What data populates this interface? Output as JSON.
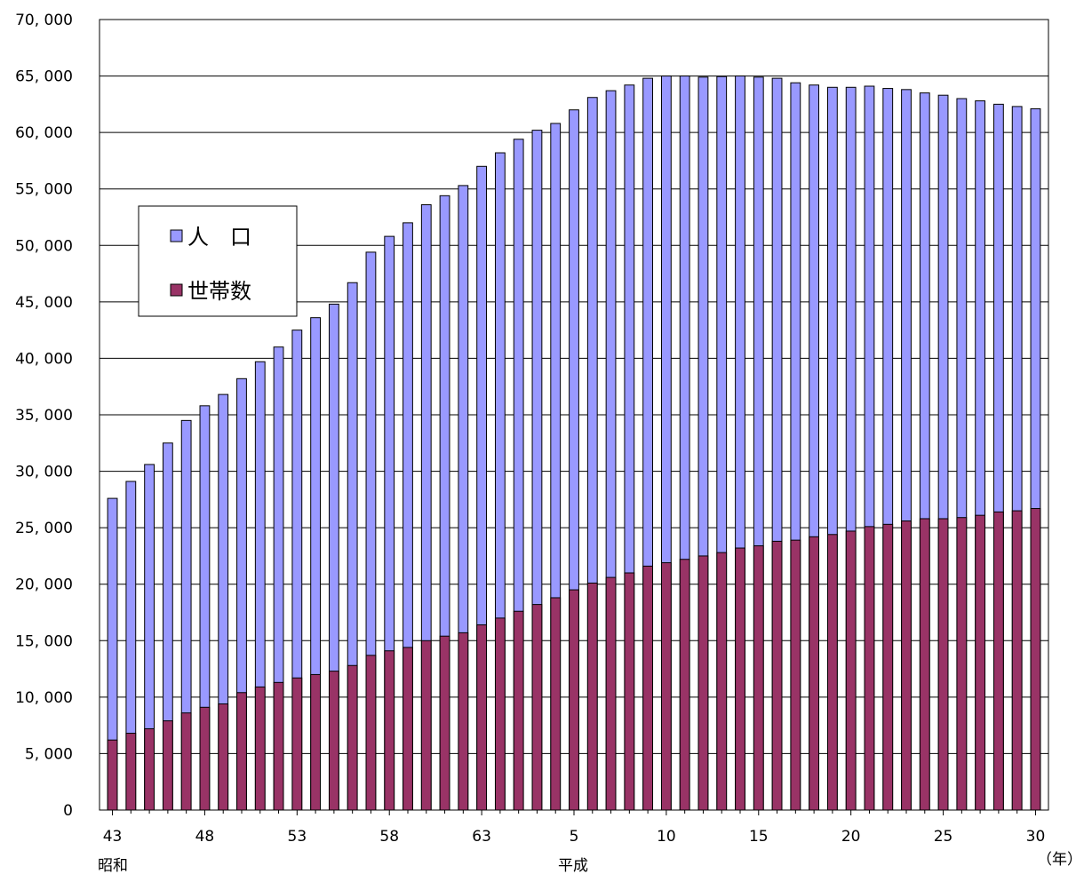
{
  "chart_data": {
    "type": "bar",
    "title": "",
    "x": [
      43,
      44,
      45,
      46,
      47,
      48,
      49,
      50,
      51,
      52,
      53,
      54,
      55,
      56,
      57,
      58,
      59,
      60,
      61,
      62,
      63,
      1,
      2,
      3,
      4,
      5,
      6,
      7,
      8,
      9,
      10,
      11,
      12,
      13,
      14,
      15,
      16,
      17,
      18,
      19,
      20,
      21,
      22,
      23,
      24,
      25,
      26,
      27,
      28,
      29,
      30
    ],
    "x_tick_labels": [
      "43",
      "48",
      "53",
      "58",
      "63",
      "5",
      "10",
      "15",
      "20",
      "25",
      "30"
    ],
    "era_labels": [
      "昭和",
      "平成"
    ],
    "x_unit": "（年）",
    "ylim": [
      0,
      70000
    ],
    "y_ticks": [
      0,
      5000,
      10000,
      15000,
      20000,
      25000,
      30000,
      35000,
      40000,
      45000,
      50000,
      55000,
      60000,
      65000,
      70000
    ],
    "y_tick_labels": [
      "0",
      "5, 000",
      "10, 000",
      "15, 000",
      "20, 000",
      "25, 000",
      "30, 000",
      "35, 000",
      "40, 000",
      "45, 000",
      "50, 000",
      "55, 000",
      "60, 000",
      "65, 000",
      "70, 000"
    ],
    "grid": "horizontal",
    "legend_position": "upper-left",
    "series": [
      {
        "name": "人　口",
        "color": "#9999ff",
        "values": [
          27600,
          29100,
          30600,
          32500,
          34500,
          35800,
          36800,
          38200,
          39700,
          41000,
          42500,
          43600,
          44800,
          46700,
          49400,
          50800,
          52000,
          53600,
          54400,
          55300,
          57000,
          58200,
          59400,
          60200,
          60800,
          62000,
          63100,
          63700,
          64200,
          64800,
          65000,
          65000,
          64900,
          64950,
          65000,
          64900,
          64800,
          64400,
          64200,
          64000,
          64000,
          64100,
          63900,
          63800,
          63500,
          63300,
          63000,
          62800,
          62500,
          62300,
          62100
        ]
      },
      {
        "name": "世帯数",
        "color": "#993366",
        "values": [
          6200,
          6800,
          7200,
          7900,
          8600,
          9100,
          9400,
          10400,
          10900,
          11300,
          11700,
          12000,
          12300,
          12800,
          13700,
          14100,
          14400,
          15000,
          15400,
          15700,
          16400,
          17000,
          17600,
          18200,
          18800,
          19500,
          20100,
          20600,
          21000,
          21600,
          21900,
          22200,
          22500,
          22800,
          23200,
          23400,
          23800,
          23900,
          24200,
          24400,
          24700,
          25100,
          25300,
          25600,
          25800,
          25800,
          25900,
          26100,
          26400,
          26500,
          26700
        ]
      }
    ]
  }
}
